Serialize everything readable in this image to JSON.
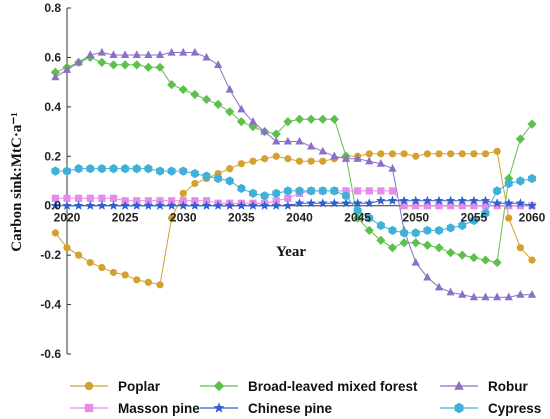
{
  "chart_data": {
    "type": "line",
    "xlabel": "Year",
    "ylabel": "Carbon sink:MtC·a⁻¹",
    "xlim": [
      2020,
      2060
    ],
    "ylim": [
      -0.6,
      0.8
    ],
    "xticks": [
      "2020",
      "2025",
      "2030",
      "2035",
      "2040",
      "2045",
      "2050",
      "2055",
      "2060"
    ],
    "yticks": [
      "0.8",
      "0.6",
      "0.4",
      "0.2",
      "0.0",
      "-0.2",
      "-0.4",
      "-0.6"
    ],
    "legend_position": "bottom",
    "grid": false,
    "x": [
      2019,
      2020,
      2021,
      2022,
      2023,
      2024,
      2025,
      2026,
      2027,
      2028,
      2029,
      2030,
      2031,
      2032,
      2033,
      2034,
      2035,
      2036,
      2037,
      2038,
      2039,
      2040,
      2041,
      2042,
      2043,
      2044,
      2045,
      2046,
      2047,
      2048,
      2049,
      2050,
      2051,
      2052,
      2053,
      2054,
      2055,
      2056,
      2057,
      2058,
      2059,
      2060
    ],
    "series": [
      {
        "name": "Poplar",
        "color": "#D4A030",
        "marker": "circle",
        "values": [
          -0.11,
          -0.17,
          -0.2,
          -0.23,
          -0.25,
          -0.27,
          -0.28,
          -0.3,
          -0.31,
          -0.32,
          -0.05,
          0.05,
          0.09,
          0.11,
          0.13,
          0.15,
          0.17,
          0.18,
          0.19,
          0.2,
          0.19,
          0.18,
          0.18,
          0.18,
          0.19,
          0.2,
          0.2,
          0.21,
          0.21,
          0.21,
          0.21,
          0.2,
          0.21,
          0.21,
          0.21,
          0.21,
          0.21,
          0.21,
          0.22,
          -0.05,
          -0.17,
          -0.22
        ]
      },
      {
        "name": "Broad-leaved mixed forest",
        "color": "#5DC04C",
        "marker": "diamond",
        "values": [
          0.54,
          0.56,
          0.58,
          0.6,
          0.58,
          0.57,
          0.57,
          0.57,
          0.56,
          0.56,
          0.49,
          0.47,
          0.45,
          0.43,
          0.41,
          0.38,
          0.34,
          0.32,
          0.3,
          0.29,
          0.34,
          0.35,
          0.35,
          0.35,
          0.35,
          0.2,
          -0.05,
          -0.1,
          -0.14,
          -0.17,
          -0.15,
          -0.15,
          -0.16,
          -0.17,
          -0.19,
          -0.2,
          -0.21,
          -0.22,
          -0.23,
          0.11,
          0.27,
          0.33
        ]
      },
      {
        "name": "Robur",
        "color": "#8B6FC8",
        "marker": "triangle",
        "values": [
          0.52,
          0.55,
          0.58,
          0.61,
          0.62,
          0.61,
          0.61,
          0.61,
          0.61,
          0.61,
          0.62,
          0.62,
          0.62,
          0.6,
          0.57,
          0.47,
          0.39,
          0.34,
          0.3,
          0.26,
          0.26,
          0.26,
          0.24,
          0.22,
          0.2,
          0.19,
          0.19,
          0.18,
          0.17,
          0.15,
          -0.1,
          -0.23,
          -0.29,
          -0.33,
          -0.35,
          -0.36,
          -0.37,
          -0.37,
          -0.37,
          -0.37,
          -0.36,
          -0.36
        ]
      },
      {
        "name": "Masson pine",
        "color": "#E58CE8",
        "marker": "square",
        "values": [
          0.03,
          0.03,
          0.03,
          0.03,
          0.03,
          0.03,
          0.02,
          0.02,
          0.02,
          0.02,
          0.02,
          0.02,
          0.02,
          0.02,
          0.01,
          0.01,
          0.01,
          0.01,
          0.01,
          0.02,
          0.03,
          0.05,
          0.06,
          0.06,
          0.06,
          0.06,
          0.06,
          0.06,
          0.06,
          0.06,
          0.0,
          0.0,
          0.0,
          0.0,
          0.0,
          0.0,
          0.0,
          0.0,
          0.0,
          0.0,
          0.0,
          0.0
        ]
      },
      {
        "name": "Chinese pine",
        "color": "#2F5FD0",
        "marker": "star",
        "values": [
          0.0,
          0.0,
          0.0,
          0.0,
          0.0,
          0.0,
          0.0,
          0.0,
          0.0,
          0.0,
          0.0,
          0.0,
          0.0,
          0.0,
          0.0,
          0.0,
          0.0,
          0.0,
          0.0,
          0.0,
          0.0,
          0.01,
          0.01,
          0.01,
          0.01,
          0.01,
          0.01,
          0.01,
          0.02,
          0.02,
          0.02,
          0.02,
          0.02,
          0.02,
          0.02,
          0.02,
          0.02,
          0.02,
          0.01,
          0.01,
          0.01,
          0.0
        ]
      },
      {
        "name": "Cypress",
        "color": "#3FB0D8",
        "marker": "hexagon",
        "values": [
          0.14,
          0.14,
          0.15,
          0.15,
          0.15,
          0.15,
          0.15,
          0.15,
          0.15,
          0.14,
          0.14,
          0.14,
          0.13,
          0.12,
          0.11,
          0.1,
          0.07,
          0.05,
          0.04,
          0.05,
          0.06,
          0.06,
          0.06,
          0.06,
          0.06,
          0.04,
          -0.02,
          -0.05,
          -0.08,
          -0.1,
          -0.11,
          -0.11,
          -0.1,
          -0.1,
          -0.09,
          -0.08,
          -0.06,
          -0.03,
          0.06,
          0.09,
          0.1,
          0.11
        ]
      }
    ]
  }
}
